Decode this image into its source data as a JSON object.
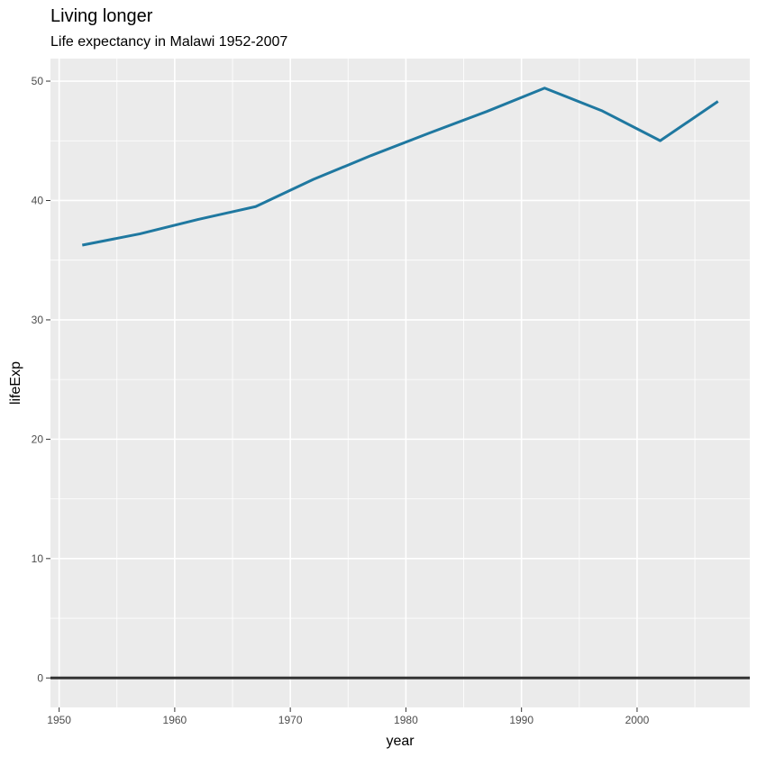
{
  "chart_data": {
    "type": "line",
    "title": "Living longer",
    "subtitle": "Life expectancy in Malawi 1952-2007",
    "xlabel": "year",
    "ylabel": "lifeExp",
    "x": [
      1952,
      1957,
      1962,
      1967,
      1972,
      1977,
      1982,
      1987,
      1992,
      1997,
      2002,
      2007
    ],
    "series": [
      {
        "values": [
          36.26,
          37.21,
          38.41,
          39.49,
          41.77,
          43.77,
          45.64,
          47.46,
          49.42,
          47.5,
          45.01,
          48.3
        ]
      }
    ],
    "xlim": [
      1949.25,
      2009.75
    ],
    "ylim": [
      -2.47,
      51.89
    ],
    "x_ticks": [
      1950,
      1960,
      1970,
      1980,
      1990,
      2000
    ],
    "x_tick_labels": [
      "1950",
      "1960",
      "1970",
      "1980",
      "1990",
      "2000"
    ],
    "y_ticks": [
      0,
      10,
      20,
      30,
      40,
      50
    ],
    "y_tick_labels": [
      "0",
      "10",
      "20",
      "30",
      "40",
      "50"
    ],
    "hline": 0,
    "grid": true,
    "colors": {
      "line": "#1f78a0",
      "panel_background": "#ebebeb",
      "grid": "#ffffff",
      "hline": "#333333",
      "tick_text": "#4d4d4d"
    }
  }
}
